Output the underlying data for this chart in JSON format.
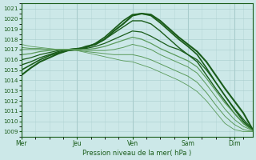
{
  "xlabel": "Pression niveau de la mer( hPa )",
  "background_color": "#cce8e8",
  "grid_color_major": "#a8cccc",
  "grid_color_minor": "#b8d8d8",
  "line_color_dark": "#1a5c1a",
  "line_color_light": "#5a9a5a",
  "ylim": [
    1008.5,
    1021.5
  ],
  "yticks": [
    1009,
    1010,
    1011,
    1012,
    1013,
    1014,
    1015,
    1016,
    1017,
    1018,
    1019,
    1020,
    1021
  ],
  "day_labels": [
    "Mer",
    "Jeu",
    "Ven",
    "Sam",
    "Dim"
  ],
  "day_positions": [
    0,
    60,
    120,
    180,
    230
  ],
  "xlim": [
    0,
    250
  ],
  "lines": [
    {
      "color": "dark",
      "lw": 1.5,
      "x": [
        0,
        10,
        20,
        30,
        40,
        50,
        60,
        70,
        80,
        90,
        100,
        110,
        120,
        130,
        140,
        150,
        160,
        170,
        180,
        190,
        200,
        210,
        220,
        230,
        240,
        250
      ],
      "y": [
        1014.5,
        1015.2,
        1015.8,
        1016.2,
        1016.6,
        1016.9,
        1017.0,
        1017.3,
        1017.5,
        1018.0,
        1018.8,
        1019.5,
        1020.3,
        1020.5,
        1020.4,
        1019.8,
        1019.0,
        1018.2,
        1017.5,
        1016.8,
        1015.8,
        1014.5,
        1013.2,
        1012.0,
        1010.8,
        1009.2
      ]
    },
    {
      "color": "dark",
      "lw": 1.2,
      "x": [
        0,
        10,
        20,
        30,
        40,
        50,
        60,
        70,
        80,
        90,
        100,
        110,
        120,
        130,
        140,
        150,
        160,
        170,
        180,
        190,
        200,
        210,
        220,
        230,
        240,
        250
      ],
      "y": [
        1015.0,
        1015.5,
        1016.0,
        1016.4,
        1016.7,
        1016.9,
        1017.0,
        1017.2,
        1017.6,
        1018.2,
        1019.0,
        1019.8,
        1020.4,
        1020.5,
        1020.3,
        1019.6,
        1018.8,
        1018.0,
        1017.3,
        1016.5,
        1015.2,
        1013.8,
        1012.5,
        1011.2,
        1010.0,
        1009.1
      ]
    },
    {
      "color": "dark",
      "lw": 1.0,
      "x": [
        0,
        10,
        20,
        30,
        40,
        50,
        60,
        70,
        80,
        90,
        100,
        110,
        120,
        130,
        140,
        150,
        160,
        170,
        180,
        190,
        200,
        210,
        220,
        230,
        240,
        250
      ],
      "y": [
        1015.5,
        1015.8,
        1016.2,
        1016.5,
        1016.8,
        1017.0,
        1017.1,
        1017.2,
        1017.5,
        1018.0,
        1018.6,
        1019.2,
        1019.8,
        1019.8,
        1019.5,
        1018.8,
        1018.0,
        1017.2,
        1016.5,
        1015.8,
        1014.5,
        1013.2,
        1012.0,
        1010.8,
        1009.8,
        1009.1
      ]
    },
    {
      "color": "dark",
      "lw": 0.9,
      "x": [
        0,
        10,
        20,
        30,
        40,
        50,
        60,
        70,
        80,
        90,
        100,
        110,
        120,
        130,
        140,
        150,
        160,
        170,
        180,
        190,
        200,
        210,
        220,
        230,
        240,
        250
      ],
      "y": [
        1016.0,
        1016.2,
        1016.5,
        1016.7,
        1016.9,
        1017.0,
        1017.1,
        1017.1,
        1017.3,
        1017.6,
        1018.0,
        1018.4,
        1018.8,
        1018.7,
        1018.3,
        1017.8,
        1017.3,
        1017.0,
        1016.5,
        1016.0,
        1015.0,
        1013.8,
        1012.5,
        1011.3,
        1010.2,
        1009.2
      ]
    },
    {
      "color": "light",
      "lw": 0.9,
      "x": [
        0,
        10,
        20,
        30,
        40,
        50,
        60,
        70,
        80,
        90,
        100,
        110,
        120,
        130,
        140,
        150,
        160,
        170,
        180,
        190,
        200,
        210,
        220,
        230,
        240,
        250
      ],
      "y": [
        1016.5,
        1016.6,
        1016.8,
        1016.9,
        1017.0,
        1017.0,
        1017.0,
        1017.0,
        1017.1,
        1017.3,
        1017.6,
        1017.9,
        1018.2,
        1018.0,
        1017.6,
        1017.1,
        1016.7,
        1016.3,
        1015.9,
        1015.3,
        1014.2,
        1013.0,
        1011.8,
        1010.8,
        1009.8,
        1009.1
      ]
    },
    {
      "color": "light",
      "lw": 0.7,
      "x": [
        0,
        10,
        20,
        30,
        40,
        50,
        60,
        70,
        80,
        90,
        100,
        110,
        120,
        130,
        140,
        150,
        160,
        170,
        180,
        190,
        200,
        210,
        220,
        230,
        240,
        250
      ],
      "y": [
        1017.0,
        1017.0,
        1017.0,
        1017.0,
        1017.0,
        1017.0,
        1017.0,
        1016.9,
        1016.9,
        1016.9,
        1017.0,
        1017.2,
        1017.5,
        1017.3,
        1017.0,
        1016.5,
        1016.1,
        1015.7,
        1015.3,
        1014.7,
        1013.6,
        1012.4,
        1011.2,
        1010.2,
        1009.5,
        1009.1
      ]
    },
    {
      "color": "light",
      "lw": 0.7,
      "x": [
        0,
        10,
        20,
        30,
        40,
        50,
        60,
        70,
        80,
        90,
        100,
        110,
        120,
        130,
        140,
        150,
        160,
        170,
        180,
        190,
        200,
        210,
        220,
        230,
        240,
        250
      ],
      "y": [
        1017.2,
        1017.1,
        1017.1,
        1017.0,
        1017.0,
        1017.0,
        1016.9,
        1016.8,
        1016.7,
        1016.6,
        1016.5,
        1016.5,
        1016.5,
        1016.3,
        1016.0,
        1015.6,
        1015.2,
        1014.8,
        1014.4,
        1013.8,
        1012.8,
        1011.6,
        1010.5,
        1009.7,
        1009.2,
        1009.0
      ]
    },
    {
      "color": "light",
      "lw": 0.6,
      "x": [
        0,
        10,
        20,
        30,
        40,
        50,
        60,
        70,
        80,
        90,
        100,
        110,
        120,
        130,
        140,
        150,
        160,
        170,
        180,
        190,
        200,
        210,
        220,
        230,
        240,
        250
      ],
      "y": [
        1017.5,
        1017.3,
        1017.2,
        1017.1,
        1017.0,
        1017.0,
        1016.9,
        1016.7,
        1016.5,
        1016.3,
        1016.1,
        1015.9,
        1015.8,
        1015.5,
        1015.2,
        1014.8,
        1014.4,
        1014.0,
        1013.5,
        1012.9,
        1012.0,
        1010.9,
        1009.8,
        1009.2,
        1009.0,
        1009.0
      ]
    }
  ]
}
